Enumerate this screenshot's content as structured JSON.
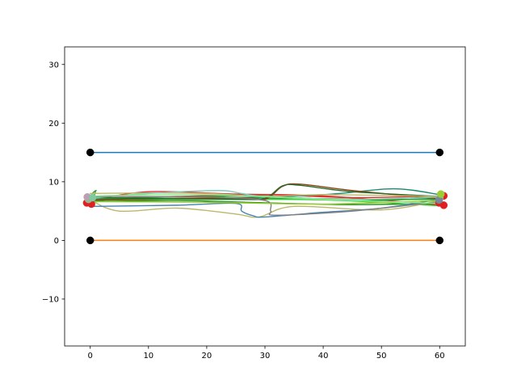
{
  "chart_data": {
    "type": "line",
    "title": "",
    "xlabel": "",
    "ylabel": "",
    "xlim": [
      -4.4,
      64.4
    ],
    "ylim": [
      -18,
      33
    ],
    "grid": false,
    "xticks": [
      0,
      10,
      20,
      30,
      40,
      50,
      60
    ],
    "xtick_labels": [
      "0",
      "10",
      "20",
      "30",
      "40",
      "50",
      "60"
    ],
    "yticks": [
      -10,
      0,
      10,
      20,
      30
    ],
    "ytick_labels": [
      "−10",
      "0",
      "10",
      "20",
      "30"
    ],
    "series": [
      {
        "color": "#1f77b4",
        "width": 1.5,
        "points": [
          [
            0,
            15
          ],
          [
            60,
            15
          ]
        ]
      },
      {
        "color": "#ff7f0e",
        "width": 1.5,
        "points": [
          [
            0,
            0
          ],
          [
            60,
            0
          ]
        ]
      },
      {
        "color": "#e03030",
        "width": 1.4,
        "points": [
          [
            -0.5,
            6.4
          ],
          [
            5,
            7.2
          ],
          [
            15,
            7.5
          ],
          [
            30,
            7.8
          ],
          [
            45,
            7.3
          ],
          [
            60.5,
            7.6
          ]
        ]
      },
      {
        "color": "#e03030",
        "width": 1.4,
        "points": [
          [
            0,
            6.8
          ],
          [
            10,
            8.3
          ],
          [
            25,
            7.9
          ],
          [
            40,
            7.6
          ],
          [
            60.5,
            6.0
          ]
        ]
      },
      {
        "color": "#2ca02c",
        "width": 1.4,
        "points": [
          [
            0,
            6.8
          ],
          [
            10,
            7.0
          ],
          [
            30,
            7.2
          ],
          [
            50,
            7.0
          ],
          [
            60,
            7.0
          ]
        ]
      },
      {
        "color": "#2ca02c",
        "width": 1.4,
        "points": [
          [
            0.5,
            6.2
          ],
          [
            1,
            8.5
          ],
          [
            2,
            7.3
          ],
          [
            20,
            7.5
          ],
          [
            30,
            7.6
          ],
          [
            45,
            6.8
          ],
          [
            60,
            7.2
          ]
        ]
      },
      {
        "color": "#228b22",
        "width": 1.4,
        "points": [
          [
            0,
            6.6
          ],
          [
            15,
            6.8
          ],
          [
            30,
            6.4
          ],
          [
            45,
            6.1
          ],
          [
            60,
            6.3
          ]
        ]
      },
      {
        "color": "#32cd32",
        "width": 1.4,
        "points": [
          [
            0,
            7.1
          ],
          [
            20,
            7.0
          ],
          [
            40,
            6.9
          ],
          [
            60,
            5.9
          ]
        ]
      },
      {
        "color": "#1a8a6e",
        "width": 1.4,
        "points": [
          [
            0,
            7.0
          ],
          [
            20,
            7.2
          ],
          [
            40,
            7.8
          ],
          [
            52,
            8.8
          ],
          [
            60,
            7.8
          ]
        ]
      },
      {
        "color": "#8b4513",
        "width": 1.4,
        "points": [
          [
            0,
            6.9
          ],
          [
            25,
            7.3
          ],
          [
            30,
            7.0
          ],
          [
            33,
            9.2
          ],
          [
            36,
            9.6
          ],
          [
            45,
            8.5
          ],
          [
            60,
            7.1
          ]
        ]
      },
      {
        "color": "#2d6a2d",
        "width": 1.4,
        "points": [
          [
            0,
            7.3
          ],
          [
            25,
            7.0
          ],
          [
            30,
            7.2
          ],
          [
            33,
            9.3
          ],
          [
            36,
            9.4
          ],
          [
            45,
            8.3
          ],
          [
            60,
            7.5
          ]
        ]
      },
      {
        "color": "#bdb76b",
        "width": 1.4,
        "points": [
          [
            0,
            8.0
          ],
          [
            10,
            8.1
          ],
          [
            20,
            8.0
          ],
          [
            30,
            7.5
          ],
          [
            40,
            7.8
          ],
          [
            60,
            7.5
          ]
        ]
      },
      {
        "color": "#bdb76b",
        "width": 1.4,
        "points": [
          [
            0,
            6.9
          ],
          [
            5,
            5.0
          ],
          [
            15,
            5.5
          ],
          [
            25,
            4.5
          ],
          [
            29,
            4.0
          ],
          [
            35,
            5.8
          ],
          [
            50,
            5.2
          ],
          [
            60,
            6.8
          ]
        ]
      },
      {
        "color": "#7fcdbb",
        "width": 1.4,
        "points": [
          [
            0,
            7.2
          ],
          [
            10,
            8.0
          ],
          [
            22,
            8.5
          ],
          [
            26,
            8.0
          ],
          [
            30,
            7.5
          ],
          [
            45,
            7.0
          ],
          [
            60,
            7.4
          ]
        ]
      },
      {
        "color": "#4682b4",
        "width": 1.4,
        "points": [
          [
            0,
            5.8
          ],
          [
            15,
            6.0
          ],
          [
            25,
            6.3
          ],
          [
            26,
            5.0
          ],
          [
            28,
            4.2
          ],
          [
            30,
            4.0
          ],
          [
            40,
            4.8
          ],
          [
            50,
            5.5
          ],
          [
            60,
            7.0
          ]
        ]
      },
      {
        "color": "#808080",
        "width": 1.4,
        "points": [
          [
            0,
            7.5
          ],
          [
            20,
            7.4
          ],
          [
            30,
            6.8
          ],
          [
            31,
            5.0
          ],
          [
            32,
            4.3
          ],
          [
            45,
            5.0
          ],
          [
            60,
            6.6
          ]
        ]
      },
      {
        "color": "#9acd32",
        "width": 1.4,
        "points": [
          [
            0,
            6.6
          ],
          [
            20,
            6.5
          ],
          [
            40,
            6.2
          ],
          [
            60,
            6.8
          ]
        ]
      },
      {
        "color": "#90ee90",
        "width": 1.4,
        "points": [
          [
            0,
            7.6
          ],
          [
            20,
            7.8
          ],
          [
            40,
            7.0
          ],
          [
            60,
            6.3
          ]
        ]
      }
    ],
    "markers": [
      {
        "x": 0,
        "y": 15,
        "color": "#000000"
      },
      {
        "x": 60,
        "y": 15,
        "color": "#000000"
      },
      {
        "x": 0,
        "y": 0,
        "color": "#000000"
      },
      {
        "x": 60,
        "y": 0,
        "color": "#000000"
      },
      {
        "x": -0.6,
        "y": 6.4,
        "color": "#e02020"
      },
      {
        "x": 0.2,
        "y": 6.2,
        "color": "#e02020"
      },
      {
        "x": 60.7,
        "y": 7.6,
        "color": "#e02020"
      },
      {
        "x": 60.7,
        "y": 6.0,
        "color": "#e02020"
      },
      {
        "x": 59.9,
        "y": 6.4,
        "color": "#e02020"
      },
      {
        "x": -0.3,
        "y": 7.0,
        "color": "#8fbc8f"
      },
      {
        "x": -0.5,
        "y": 7.4,
        "color": "#bc9fb0"
      },
      {
        "x": 0.4,
        "y": 7.3,
        "color": "#7fc8a0"
      },
      {
        "x": 60.0,
        "y": 7.3,
        "color": "#a0b8a8"
      },
      {
        "x": 59.9,
        "y": 6.9,
        "color": "#778899"
      },
      {
        "x": 60.2,
        "y": 7.9,
        "color": "#9acd32"
      }
    ]
  }
}
